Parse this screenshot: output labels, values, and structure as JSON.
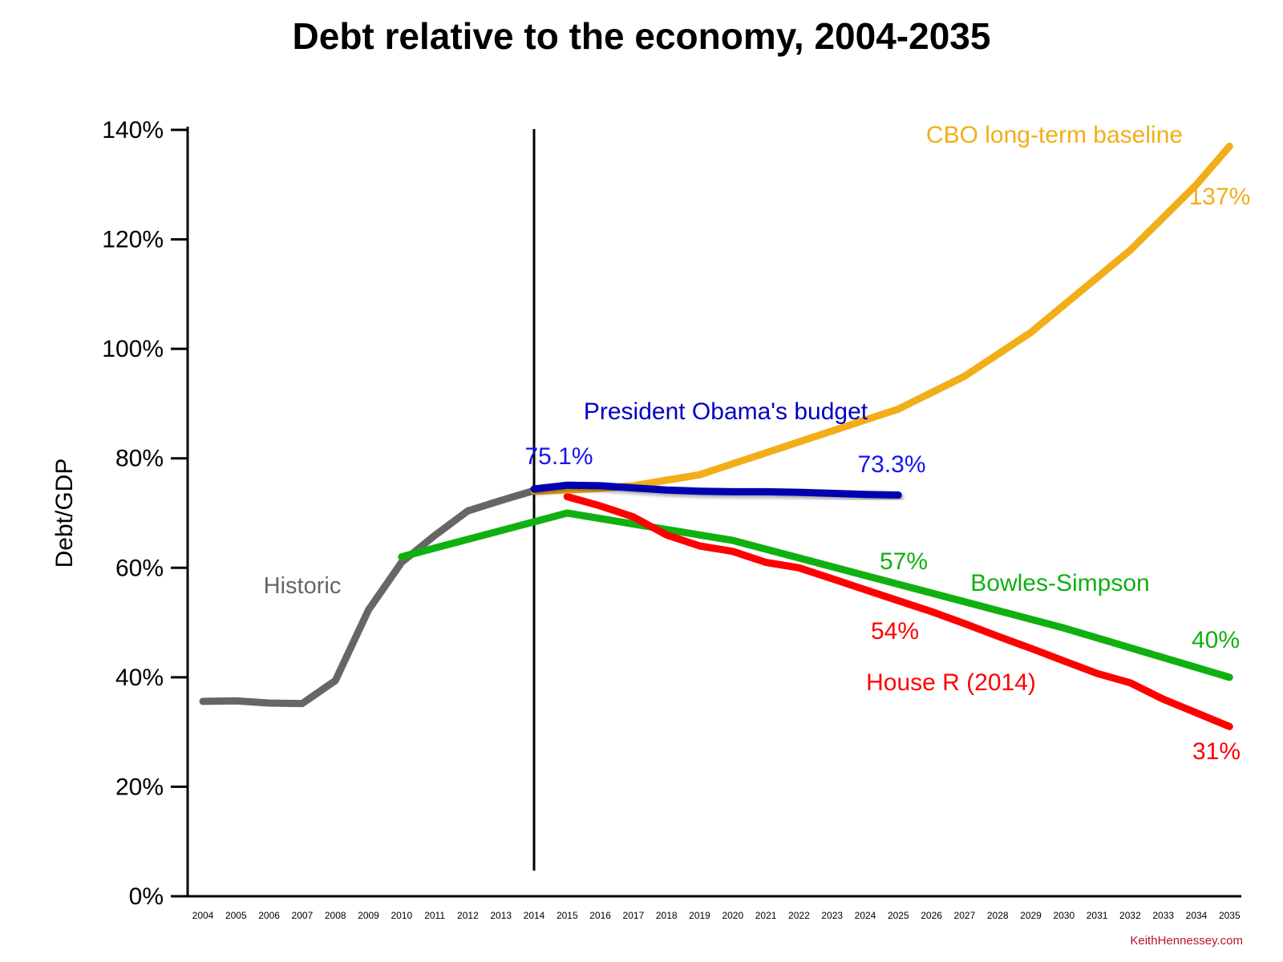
{
  "chart_data": {
    "type": "line",
    "title": "Debt relative to the economy, 2004-2035",
    "xlabel": "",
    "ylabel": "Debt/GDP",
    "ylim": [
      0,
      140
    ],
    "xlim": [
      2004,
      2035
    ],
    "yticks": [
      "0%",
      "20%",
      "40%",
      "60%",
      "80%",
      "100%",
      "120%",
      "140%"
    ],
    "categories": [
      "2004",
      "2005",
      "2006",
      "2007",
      "2008",
      "2009",
      "2010",
      "2011",
      "2012",
      "2013",
      "2014",
      "2015",
      "2016",
      "2017",
      "2018",
      "2019",
      "2020",
      "2021",
      "2022",
      "2023",
      "2024",
      "2025",
      "2026",
      "2027",
      "2028",
      "2029",
      "2030",
      "2031",
      "2032",
      "2033",
      "2034",
      "2035"
    ],
    "grid": false,
    "reference_line_year": 2014,
    "series": [
      {
        "name": "Historic",
        "color": "#666666",
        "x": [
          2004,
          2005,
          2006,
          2007,
          2008,
          2009,
          2010,
          2011,
          2012,
          2013,
          2014
        ],
        "values": [
          35.6,
          35.7,
          35.3,
          35.2,
          39.4,
          52.3,
          61.0,
          65.9,
          70.4,
          72.3,
          74.1
        ]
      },
      {
        "name": "Bowles-Simpson",
        "color": "#11b011",
        "x": [
          2010,
          2015,
          2020,
          2025,
          2030,
          2035
        ],
        "values": [
          62,
          70,
          65,
          57,
          49,
          40
        ]
      },
      {
        "name": "House R (2014)",
        "color": "#ff0000",
        "x": [
          2015,
          2016,
          2017,
          2018,
          2019,
          2020,
          2021,
          2022,
          2023,
          2024,
          2025,
          2026,
          2027,
          2028,
          2029,
          2030,
          2031,
          2032,
          2033,
          2034,
          2035
        ],
        "values": [
          73,
          71.3,
          69.3,
          66.0,
          64.0,
          63.0,
          61.0,
          60.0,
          58.0,
          56.0,
          54.0,
          52.0,
          49.8,
          47.5,
          45.3,
          43.0,
          40.7,
          39.0,
          36.0,
          33.5,
          31.0
        ]
      },
      {
        "name": "CBO long-term baseline",
        "color": "#f1ae18",
        "x": [
          2014,
          2015,
          2016,
          2017,
          2018,
          2019,
          2020,
          2021,
          2022,
          2023,
          2024,
          2025,
          2026,
          2027,
          2028,
          2029,
          2030,
          2031,
          2032,
          2033,
          2034,
          2035
        ],
        "values": [
          74,
          74.2,
          74.5,
          75.0,
          76.0,
          77.0,
          79.0,
          81.0,
          83.0,
          85.0,
          87.0,
          89.0,
          92.0,
          95.0,
          99.0,
          103.0,
          108.0,
          113.0,
          118.0,
          124.0,
          130.0,
          137.0
        ]
      },
      {
        "name": "President Obama's budget",
        "color": "#0000b0",
        "x": [
          2014,
          2015,
          2016,
          2017,
          2018,
          2019,
          2020,
          2021,
          2022,
          2023,
          2024,
          2025
        ],
        "values": [
          74.4,
          75.1,
          75.0,
          74.6,
          74.2,
          74.0,
          73.9,
          73.9,
          73.8,
          73.6,
          73.4,
          73.3
        ]
      }
    ],
    "annotations": [
      {
        "text": "Historic",
        "color": "#666666"
      },
      {
        "text": "President Obama's budget",
        "color": "#0000c0"
      },
      {
        "text": "75.1%",
        "color": "#1515f0"
      },
      {
        "text": "73.3%",
        "color": "#1515f0"
      },
      {
        "text": "CBO long-term baseline",
        "color": "#f1ae18"
      },
      {
        "text": "137%",
        "color": "#f1ae18"
      },
      {
        "text": "57%",
        "color": "#11b011"
      },
      {
        "text": "Bowles-Simpson",
        "color": "#11b011"
      },
      {
        "text": "40%",
        "color": "#11b011"
      },
      {
        "text": "54%",
        "color": "#ff0000"
      },
      {
        "text": "House R (2014)",
        "color": "#ff0000"
      },
      {
        "text": "31%",
        "color": "#ff0000"
      }
    ]
  },
  "watermark": "KeithHennessey.com"
}
